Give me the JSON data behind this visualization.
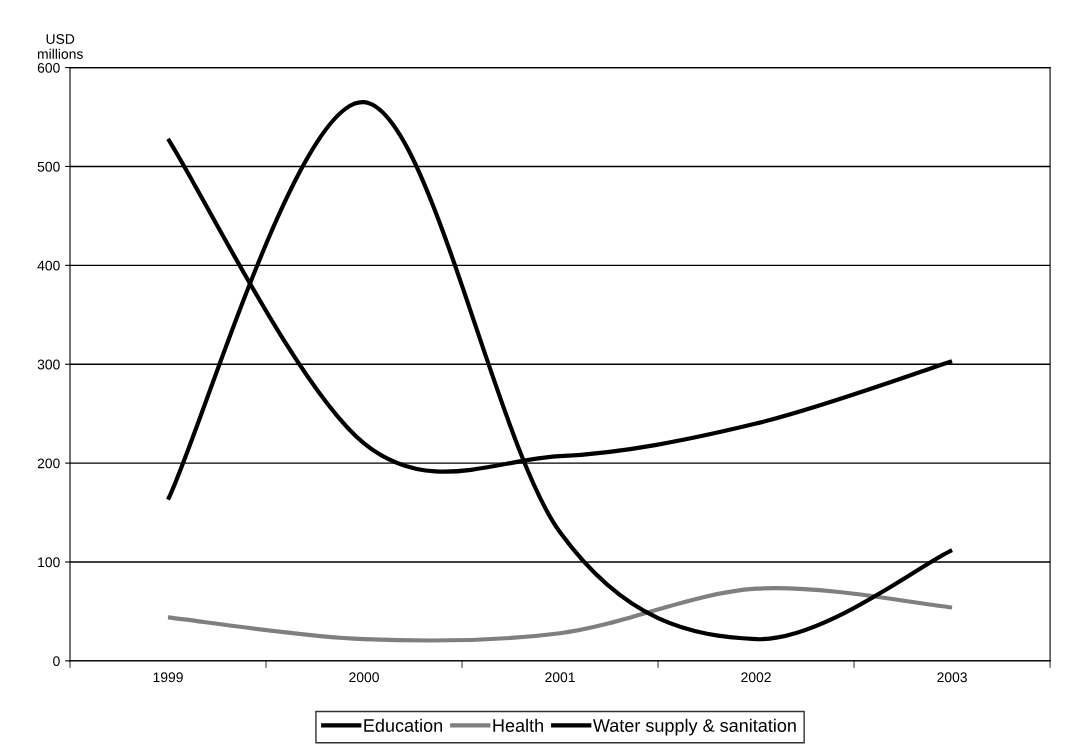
{
  "chart_data": {
    "type": "line",
    "ylabel": "USD\nmillions",
    "categories": [
      "1999",
      "2000",
      "2001",
      "2002",
      "2003"
    ],
    "series": [
      {
        "name": "Education",
        "color": "#000000",
        "values": [
          528,
          220,
          207,
          240,
          303
        ]
      },
      {
        "name": "Health",
        "color": "#7f7f7f",
        "values": [
          44,
          22,
          28,
          73,
          54
        ]
      },
      {
        "name": "Water supply & sanitation",
        "color": "#000000",
        "values": [
          163,
          565,
          130,
          22,
          112
        ]
      }
    ],
    "ylim": [
      0,
      600
    ],
    "yticks": [
      0,
      100,
      200,
      300,
      400,
      500,
      600
    ],
    "grid": "y",
    "legend": "bottom",
    "marker": "none",
    "line_style": "solid"
  }
}
